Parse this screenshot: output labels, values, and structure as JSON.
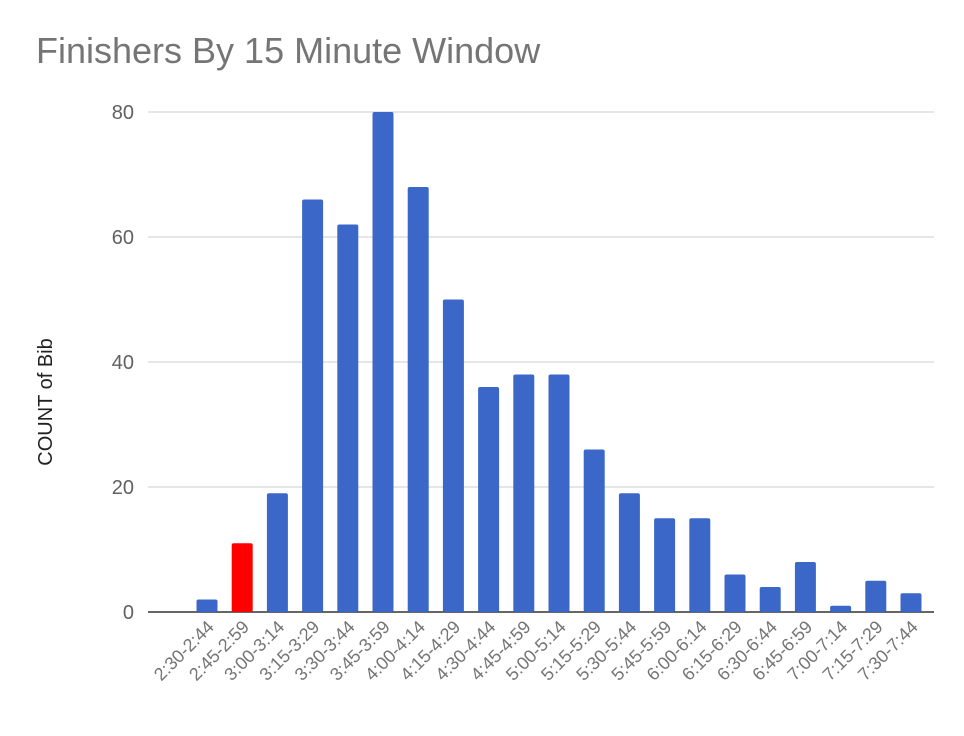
{
  "chart_data": {
    "type": "bar",
    "title": "Finishers By 15 Minute Window",
    "xlabel": "",
    "ylabel": "COUNT of Bib",
    "ylim": [
      0,
      80
    ],
    "yticks": [
      0,
      20,
      40,
      60,
      80
    ],
    "grid": true,
    "legend": "none",
    "categories": [
      "2:30-2:44",
      "2:45-2:59",
      "3:00-3:14",
      "3:15-3:29",
      "3:30-3:44",
      "3:45-3:59",
      "4:00-4:14",
      "4:15-4:29",
      "4:30-4:44",
      "4:45-4:59",
      "5:00-5:14",
      "5:15-5:29",
      "5:30-5:44",
      "5:45-5:59",
      "6:00-6:14",
      "6:15-6:29",
      "6:30-6:44",
      "6:45-6:59",
      "7:00-7:14",
      "7:15-7:29",
      "7:30-7:44"
    ],
    "values": [
      2,
      11,
      19,
      66,
      62,
      80,
      68,
      50,
      36,
      38,
      38,
      26,
      19,
      15,
      15,
      6,
      4,
      8,
      1,
      5,
      3
    ],
    "colors": {
      "default": "#3b67c8",
      "highlight": "#ff0000",
      "highlight_category": "2:45-2:59",
      "grid": "#cccccc",
      "baseline": "#333333"
    }
  }
}
